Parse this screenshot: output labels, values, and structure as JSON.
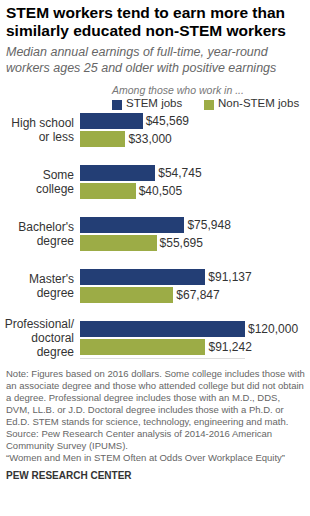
{
  "chart_data": {
    "type": "bar",
    "orientation": "horizontal",
    "title": "STEM workers tend to earn more than similarly educated non-STEM workers",
    "subtitle": "Median annual earnings of full-time, year-round workers ages 25 and older with positive earnings",
    "legend_title": "Among those who work in ...",
    "legend": "top",
    "data_labels": true,
    "tick_labels": "y",
    "grid": false,
    "categories": [
      "High school or less",
      "Some college",
      "Bachelor's degree",
      "Master's degree",
      "Professional/ doctoral degree"
    ],
    "series": [
      {
        "name": "STEM jobs",
        "color": "#233e75",
        "values": [
          45569,
          54745,
          75948,
          91137,
          120000
        ],
        "value_labels": [
          "$45,569",
          "$54,745",
          "$75,948",
          "$91,137",
          "$120,000"
        ]
      },
      {
        "name": "Non-STEM jobs",
        "color": "#9cac46",
        "values": [
          33000,
          40505,
          55695,
          67847,
          91242
        ],
        "value_labels": [
          "$33,000",
          "$40,505",
          "$55,695",
          "$67,847",
          "$91,242"
        ]
      }
    ],
    "xlim": [
      0,
      120000
    ],
    "annotations": [
      "Note: Figures based on 2016 dollars. Some college includes those with an associate degree and those who attended college but did not obtain a degree. Professional degree includes those with an M.D., DDS, DVM, LL.B. or J.D. Doctoral degree includes those with a Ph.D. or Ed.D. STEM stands for science, technology, engineering and math.",
      "Source: Pew Research Center analysis of 2014-2016 American Community Survey (IPUMS).",
      "“Women and Men in STEM Often at Odds Over Workplace Equity”",
      "PEW RESEARCH CENTER"
    ]
  }
}
